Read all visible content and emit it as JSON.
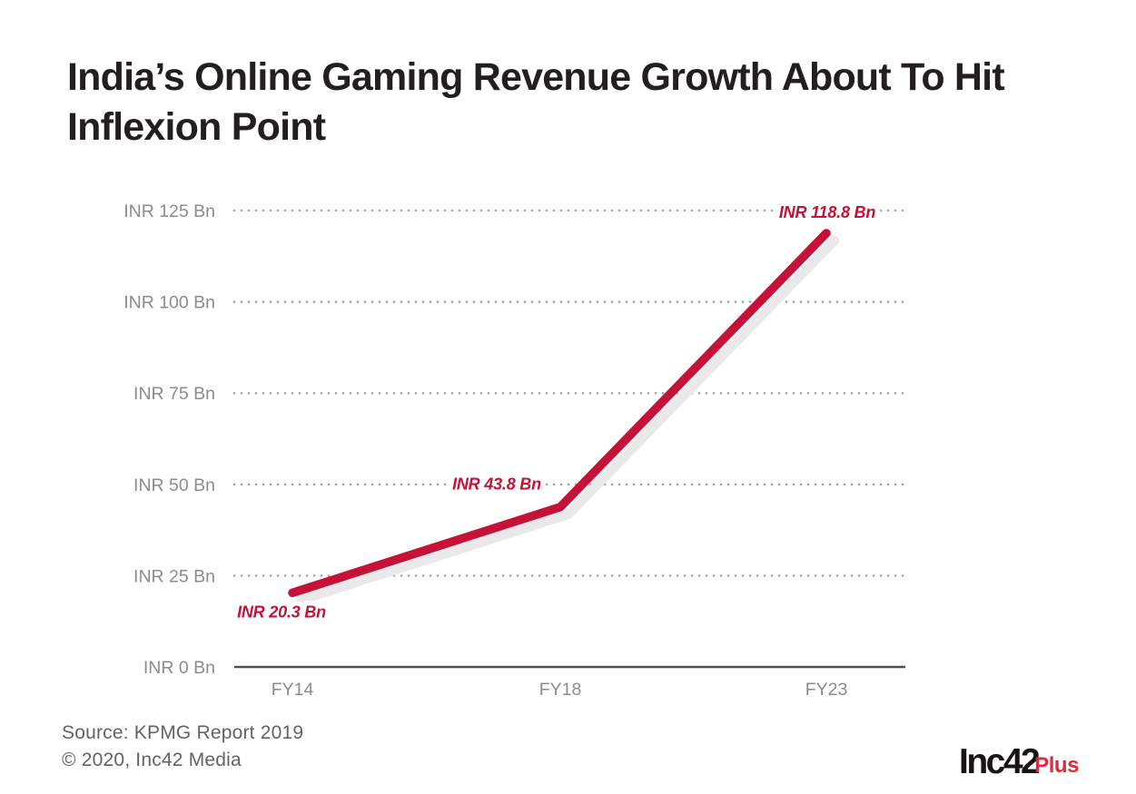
{
  "title": {
    "line1": "India’s Online Gaming Revenue Growth About To Hit",
    "line2": "Inflexion Point"
  },
  "footer": {
    "source": "Source: KPMG Report 2019",
    "copyright": "© 2020, Inc42 Media"
  },
  "logo": {
    "inc42": "Inc42",
    "plus": "Plus"
  },
  "colors": {
    "line": "#c51236",
    "line_shadow": "#e9e9e9",
    "data_label": "#c51236",
    "grid_dots": "#a8a8a8",
    "axis_line": "#4f5052",
    "tick_label": "#8c8c8c",
    "title_text": "#231f20",
    "footer_text": "#636363",
    "logo_black": "#181415",
    "logo_red": "#e1293b"
  },
  "chart_data": {
    "type": "line",
    "title": "India’s Online Gaming Revenue Growth About To Hit Inflexion Point",
    "x_categories": [
      "FY14",
      "FY18",
      "FY23"
    ],
    "series": [
      {
        "name": "India online gaming revenue",
        "values": [
          20.3,
          43.8,
          118.8
        ]
      }
    ],
    "point_labels": [
      "INR 20.3 Bn",
      "INR 43.8 Bn",
      "INR 118.8 Bn"
    ],
    "y_ticks": [
      {
        "value": 0,
        "label": "INR 0 Bn"
      },
      {
        "value": 25,
        "label": "INR 25 Bn"
      },
      {
        "value": 50,
        "label": "INR 50 Bn"
      },
      {
        "value": 75,
        "label": "INR 75 Bn"
      },
      {
        "value": 100,
        "label": "INR 100 Bn"
      },
      {
        "value": 125,
        "label": "INR 125 Bn"
      }
    ],
    "ylim": [
      0,
      125
    ],
    "unit": "INR Bn",
    "grid": "horizontal-dotted",
    "legend": "none",
    "source": "KPMG Report 2019"
  }
}
